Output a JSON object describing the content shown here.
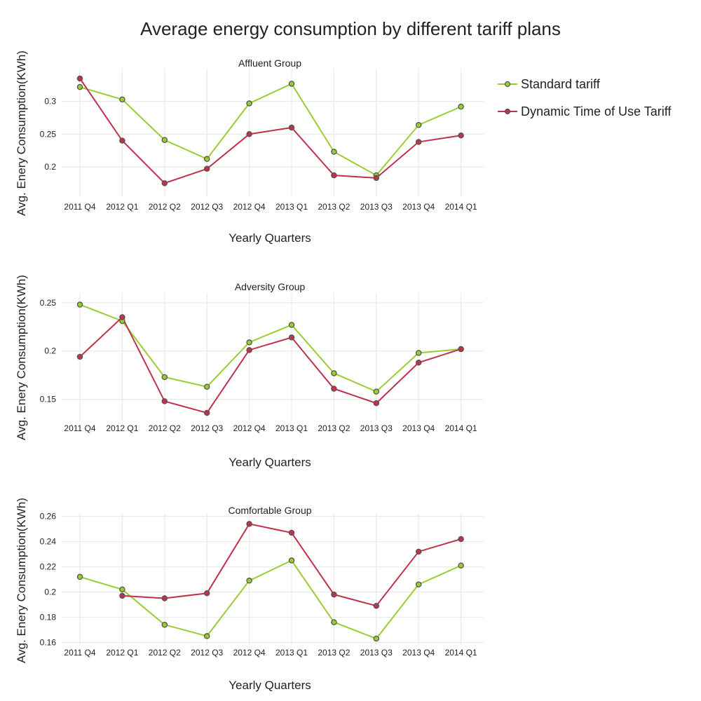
{
  "title": "Average energy consumption by different tariff plans",
  "legend": [
    {
      "name": "Standard tariff",
      "color": "#9acd32"
    },
    {
      "name": "Dynamic Time of Use Tariff",
      "color": "#c0314a"
    }
  ],
  "chart_data": [
    {
      "type": "line",
      "title": "Affluent Group",
      "xlabel": "Yearly Quarters",
      "ylabel": "Avg. Enery Consumption(KWh)",
      "categories": [
        "2011 Q4",
        "2012 Q1",
        "2012 Q2",
        "2012 Q3",
        "2012 Q4",
        "2013 Q1",
        "2013 Q2",
        "2013 Q3",
        "2013 Q4",
        "2014 Q1"
      ],
      "ylim": [
        0.155,
        0.35
      ],
      "yticks": [
        0.2,
        0.25,
        0.3
      ],
      "ytick_labels": [
        "0.2",
        "0.25",
        "0.3"
      ],
      "grid": true,
      "legend_position": "top-right",
      "series": [
        {
          "name": "Standard tariff",
          "color": "#9acd32",
          "values": [
            0.322,
            0.303,
            0.241,
            0.212,
            0.297,
            0.327,
            0.223,
            0.187,
            0.264,
            0.292
          ]
        },
        {
          "name": "Dynamic Time of Use Tariff",
          "color": "#c0314a",
          "values": [
            0.335,
            0.24,
            0.175,
            0.197,
            0.25,
            0.26,
            0.187,
            0.183,
            0.238,
            0.248
          ]
        }
      ]
    },
    {
      "type": "line",
      "title": "Adversity Group",
      "xlabel": "Yearly Quarters",
      "ylabel": "Avg. Enery Consumption(KWh)",
      "categories": [
        "2011 Q4",
        "2012 Q1",
        "2012 Q2",
        "2012 Q3",
        "2012 Q4",
        "2013 Q1",
        "2013 Q2",
        "2013 Q3",
        "2013 Q4",
        "2014 Q1"
      ],
      "ylim": [
        0.128,
        0.26
      ],
      "yticks": [
        0.15,
        0.2,
        0.25
      ],
      "ytick_labels": [
        "0.15",
        "0.2",
        "0.25"
      ],
      "grid": true,
      "series": [
        {
          "name": "Standard tariff",
          "color": "#9acd32",
          "values": [
            0.248,
            0.231,
            0.173,
            0.163,
            0.209,
            0.227,
            0.177,
            0.158,
            0.198,
            0.202
          ]
        },
        {
          "name": "Dynamic Time of Use Tariff",
          "color": "#c0314a",
          "values": [
            0.194,
            0.235,
            0.148,
            0.136,
            0.201,
            0.214,
            0.161,
            0.146,
            0.188,
            0.202
          ]
        }
      ]
    },
    {
      "type": "line",
      "title": "Comfortable Group",
      "xlabel": "Yearly Quarters",
      "ylabel": "Avg. Enery Consumption(KWh)",
      "categories": [
        "2011 Q4",
        "2012 Q1",
        "2012 Q2",
        "2012 Q3",
        "2012 Q4",
        "2013 Q1",
        "2013 Q2",
        "2013 Q3",
        "2013 Q4",
        "2014 Q1"
      ],
      "ylim": [
        0.158,
        0.262
      ],
      "yticks": [
        0.16,
        0.18,
        0.2,
        0.22,
        0.24,
        0.26
      ],
      "ytick_labels": [
        "0.16",
        "0.18",
        "0.2",
        "0.22",
        "0.24",
        "0.26"
      ],
      "grid": true,
      "series": [
        {
          "name": "Standard tariff",
          "color": "#9acd32",
          "values": [
            0.212,
            0.202,
            0.174,
            0.165,
            0.209,
            0.225,
            0.176,
            0.163,
            0.206,
            0.221
          ]
        },
        {
          "name": "Dynamic Time of Use Tariff",
          "color": "#c0314a",
          "values": [
            null,
            0.197,
            0.195,
            0.199,
            0.254,
            0.247,
            0.198,
            0.189,
            0.232,
            0.242
          ]
        }
      ]
    }
  ]
}
